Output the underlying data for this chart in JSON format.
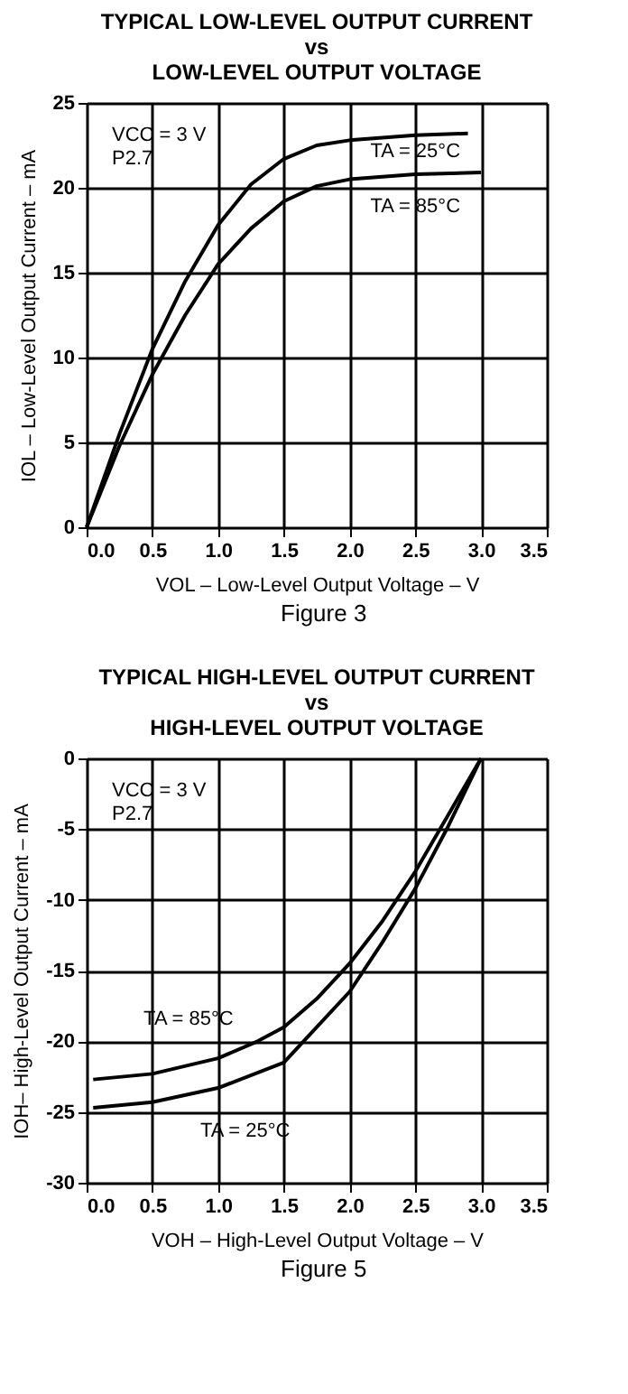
{
  "chart_data": [
    {
      "type": "line",
      "title": "TYPICAL LOW-LEVEL OUTPUT CURRENT\nvs\nLOW-LEVEL OUTPUT VOLTAGE",
      "xlabel": "VOL – Low-Level Output Voltage – V",
      "ylabel": "IOL – Low-Level Output Current – mA",
      "annotations": [
        "VCC = 3 V",
        "P2.7",
        "Figure 3"
      ],
      "series": [
        {
          "name": "TA = 25°C",
          "color": "#000000",
          "x": [
            0,
            0.25,
            0.5,
            0.75,
            1.0,
            1.25,
            1.5,
            1.75,
            2.0,
            2.5,
            2.9
          ],
          "values": [
            0,
            5.5,
            10.5,
            14.5,
            17.8,
            20.2,
            21.7,
            22.5,
            22.8,
            23.1,
            23.2
          ]
        },
        {
          "name": "TA = 85°C",
          "color": "#000000",
          "x": [
            0,
            0.25,
            0.5,
            0.75,
            1.0,
            1.25,
            1.5,
            1.75,
            2.0,
            2.5,
            3.0
          ],
          "values": [
            0,
            4.8,
            9.0,
            12.5,
            15.5,
            17.6,
            19.2,
            20.1,
            20.5,
            20.8,
            20.9
          ]
        }
      ],
      "xlim": [
        0,
        3.5
      ],
      "xticks": [
        {
          "value": 0,
          "label": "0.0"
        },
        0.5,
        {
          "value": 1,
          "label": "1.0"
        },
        1.5,
        {
          "value": 2,
          "label": "2.0"
        },
        2.5,
        {
          "value": 3,
          "label": "3.0"
        },
        3.5
      ],
      "ylim": [
        0,
        25
      ],
      "yticks": [
        0,
        5,
        10,
        15,
        20,
        25
      ],
      "grid": true,
      "legend": false,
      "marker": "none",
      "line_style": "solid"
    },
    {
      "type": "line",
      "title": "TYPICAL HIGH-LEVEL OUTPUT CURRENT\nvs\nHIGH-LEVEL OUTPUT VOLTAGE",
      "xlabel": "VOH – High-Level Output Voltage – V",
      "ylabel": "IOH– High-Level Output Current – mA",
      "annotations": [
        "VCC = 3 V",
        "P2.7",
        "Figure 5"
      ],
      "series": [
        {
          "name": "TA = 85°C",
          "color": "#000000",
          "x": [
            0.05,
            0.5,
            1.0,
            1.3,
            1.5,
            1.75,
            2.0,
            2.25,
            2.5,
            2.75,
            3.0
          ],
          "values": [
            -22.7,
            -22.3,
            -21.2,
            -20,
            -19,
            -17,
            -14.5,
            -11.5,
            -8,
            -4,
            0
          ]
        },
        {
          "name": "TA = 25°C",
          "color": "#000000",
          "x": [
            0.05,
            0.5,
            1.0,
            1.5,
            1.65,
            2.0,
            2.25,
            2.5,
            2.75,
            3.0
          ],
          "values": [
            -24.7,
            -24.3,
            -23.3,
            -21.5,
            -20,
            -16.5,
            -13,
            -9.2,
            -4.8,
            0
          ]
        }
      ],
      "xlim": [
        0,
        3.5
      ],
      "xticks": [
        {
          "value": 0,
          "label": "0.0"
        },
        0.5,
        {
          "value": 1,
          "label": "1.0"
        },
        1.5,
        {
          "value": 2,
          "label": "2.0"
        },
        2.5,
        {
          "value": 3,
          "label": "3.0"
        },
        3.5
      ],
      "ylim": [
        -30,
        0
      ],
      "yticks": [
        -30,
        -25,
        -20,
        -15,
        -10,
        -5,
        0
      ],
      "grid": true,
      "legend": false,
      "marker": "none",
      "line_style": "solid"
    }
  ]
}
